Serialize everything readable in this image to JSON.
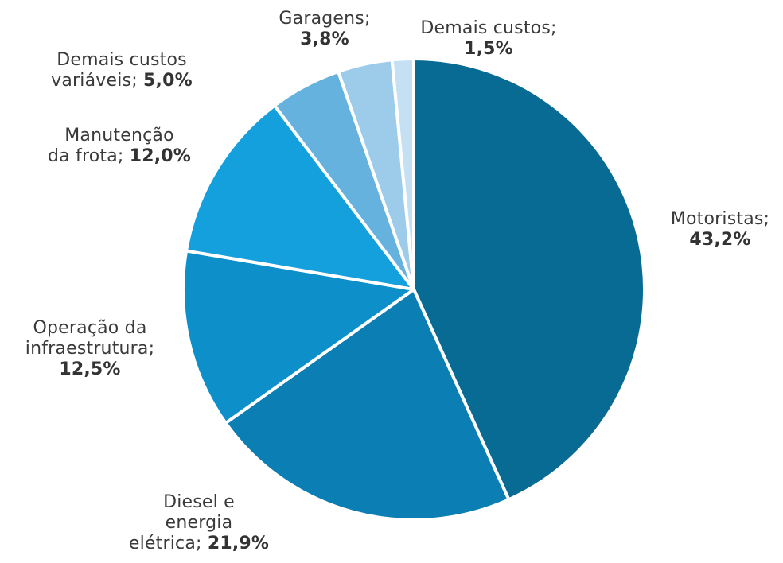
{
  "chart_data": {
    "type": "pie",
    "slices": [
      {
        "label": "Motoristas;",
        "value": 43.2,
        "value_text": "43,2%",
        "color": "#086b94"
      },
      {
        "label": "Diesel e energia elétrica;",
        "value": 21.9,
        "value_text": "21,9%",
        "color": "#0b7eb3"
      },
      {
        "label": "Operação da infraestrutura;",
        "value": 12.5,
        "value_text": "12,5%",
        "color": "#0d8fca"
      },
      {
        "label": "Manutenção da frota;",
        "value": 12.0,
        "value_text": "12,0%",
        "color": "#14a0dc"
      },
      {
        "label": "Demais custos variáveis;",
        "value": 5.0,
        "value_text": "5,0%",
        "color": "#66b2de"
      },
      {
        "label": "Garagens;",
        "value": 3.8,
        "value_text": "3,8%",
        "color": "#9dcbea"
      },
      {
        "label": "Demais custos;",
        "value": 1.5,
        "value_text": "1,5%",
        "color": "#c5e0f2"
      }
    ],
    "start_angle": "12 o'clock",
    "direction": "clockwise",
    "legend": "none"
  }
}
